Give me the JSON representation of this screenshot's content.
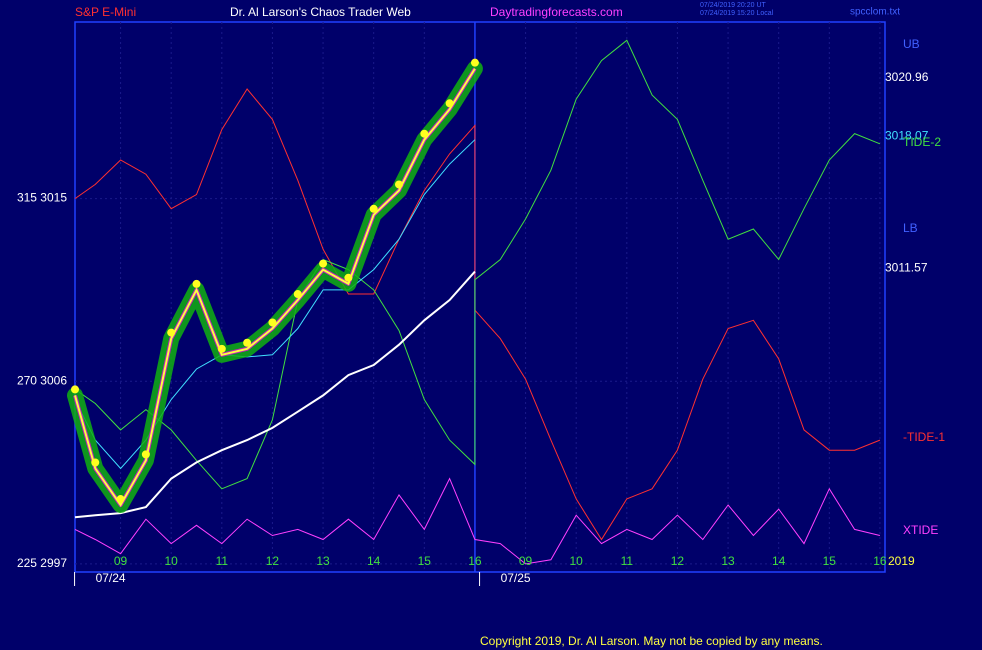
{
  "chart_data": {
    "type": "line",
    "header": {
      "instrument": "S&P E-Mini",
      "site": "Dr. Al Larson's Chaos Trader Web",
      "url": "Daytradingforecasts.com",
      "time_ut": "07/24/2019 20:20 UT",
      "time_local": "07/24/2019 15:20 Local",
      "file": "spcclom.txt"
    },
    "footer": "Copyright 2019, Dr. Al Larson. May not be copied by any means.",
    "annotations": [
      {
        "text": "UB",
        "color": "#4060ff"
      },
      {
        "text": "TIDE-2",
        "color": "#40e040"
      },
      {
        "text": "LB",
        "color": "#4060ff"
      },
      {
        "text": "-TIDE-1",
        "color": "#ff3030"
      },
      {
        "text": "XTIDE",
        "color": "#ff40ff"
      },
      {
        "text": "2019",
        "color": "#ffff40"
      }
    ],
    "price_labels": [
      3020.96,
      3018.07,
      3011.57
    ],
    "price_label_colors": [
      "#ffffff",
      "#40e0ff",
      "#ffffff"
    ],
    "xlim": [
      8.1,
      24.1
    ],
    "xticks": [
      {
        "value": 9,
        "label": "09"
      },
      10,
      11,
      12,
      13,
      14,
      15,
      16,
      {
        "value": 17,
        "label": "09"
      },
      {
        "value": 18,
        "label": "10"
      },
      {
        "value": 19,
        "label": "11"
      },
      {
        "value": 20,
        "label": "12"
      },
      {
        "value": 21,
        "label": "13"
      },
      {
        "value": 22,
        "label": "14"
      },
      {
        "value": 23,
        "label": "15"
      },
      {
        "value": 24,
        "label": "16"
      }
    ],
    "dates": [
      {
        "value": 9,
        "label": "07/24"
      },
      {
        "value": 17,
        "label": "07/25"
      }
    ],
    "ylim": [
      2996.6,
      3023.7
    ],
    "yticks": [
      {
        "value": 2997,
        "label": "225  2997"
      },
      {
        "value": 3006,
        "label": "270  3006"
      },
      {
        "value": 3015,
        "label": "315  3015"
      }
    ],
    "grid": true,
    "series": [
      {
        "name": "XTIDE",
        "color": "#ff40ff",
        "x": [
          8.1,
          8.5,
          9,
          9.5,
          10,
          10.5,
          11,
          11.5,
          12,
          12.5,
          13,
          13.5,
          14,
          14.5,
          15,
          15.5,
          16,
          16.5,
          17,
          17.5,
          18,
          18.5,
          19,
          19.5,
          20,
          20.5,
          21,
          21.5,
          22,
          22.5,
          23,
          23.5,
          24
        ],
        "values": [
          2998.7,
          2998.2,
          2997.5,
          2999.2,
          2998.0,
          2998.9,
          2998.0,
          2999.2,
          2998.4,
          2998.7,
          2998.2,
          2999.2,
          2998.2,
          3000.4,
          2998.7,
          3001.2,
          2998.2,
          2998.0,
          2997.0,
          2997.2,
          2999.4,
          2998.0,
          2998.7,
          2998.2,
          2999.4,
          2998.2,
          2999.9,
          2998.4,
          2999.7,
          2998.0,
          3000.7,
          2998.7,
          2998.4
        ]
      },
      {
        "name": "-TIDE-1",
        "color": "#ff3030",
        "x": [
          8.1,
          8.5,
          9,
          9.5,
          10,
          10.5,
          11,
          11.5,
          12,
          12.5,
          13,
          13.5,
          14,
          14.5,
          15,
          15.5,
          16,
          16,
          16.5,
          17,
          17.5,
          18,
          18.5,
          19,
          19.5,
          20,
          20.5,
          21,
          21.5,
          22,
          22.5,
          23,
          23.5,
          24
        ],
        "values": [
          3015.0,
          3015.7,
          3016.9,
          3016.2,
          3014.5,
          3015.2,
          3018.4,
          3020.4,
          3018.9,
          3015.9,
          3012.5,
          3010.3,
          3010.3,
          3013.0,
          3015.4,
          3017.2,
          3018.6,
          3009.5,
          3008.1,
          3006.1,
          3003.1,
          3000.2,
          2998.2,
          3000.2,
          3000.7,
          3002.6,
          3006.1,
          3008.6,
          3009.0,
          3007.1,
          3003.6,
          3002.6,
          3002.6,
          3003.1
        ]
      },
      {
        "name": "TIDE-2",
        "color": "#40e040",
        "x": [
          8.1,
          8.5,
          9,
          9.5,
          10,
          10.5,
          11,
          11.5,
          12,
          12.5,
          13,
          13.5,
          14,
          14.5,
          15,
          15.5,
          16,
          16,
          16.5,
          17,
          17.5,
          18,
          18.5,
          19,
          19.5,
          20,
          20.5,
          21,
          21.5,
          22,
          22.5,
          23,
          23.5,
          24
        ],
        "values": [
          3005.6,
          3004.9,
          3003.6,
          3004.6,
          3003.6,
          3002.1,
          3000.7,
          3001.2,
          3004.1,
          3010.0,
          3012.0,
          3011.5,
          3010.5,
          3008.5,
          3005.1,
          3003.1,
          3001.9,
          3011.0,
          3012.0,
          3014.0,
          3016.4,
          3019.9,
          3021.8,
          3022.8,
          3020.1,
          3018.9,
          3015.9,
          3013.0,
          3013.5,
          3012.0,
          3014.5,
          3016.9,
          3018.2,
          3017.7
        ]
      },
      {
        "name": "3011.57",
        "color": "#ffffff",
        "x": [
          8.1,
          8.5,
          9,
          9.5,
          10,
          10.5,
          11,
          11.5,
          12,
          12.5,
          13,
          13.5,
          14,
          14.5,
          15,
          15.5,
          16
        ],
        "values": [
          2999.3,
          2999.4,
          2999.5,
          2999.8,
          3001.2,
          3002.0,
          3002.6,
          3003.1,
          3003.7,
          3004.5,
          3005.3,
          3006.3,
          3006.8,
          3007.8,
          3009.0,
          3010.0,
          3011.4
        ]
      },
      {
        "name": "3018.07",
        "color": "#40e0ff",
        "x": [
          8.1,
          8.5,
          9,
          9.5,
          10,
          10.5,
          11,
          11.5,
          12,
          12.5,
          13,
          13.5,
          14,
          14.5,
          15,
          15.5,
          16
        ],
        "values": [
          3005.1,
          3003.1,
          3001.7,
          3003.1,
          3005.1,
          3006.6,
          3007.3,
          3007.2,
          3007.3,
          3008.6,
          3010.5,
          3010.5,
          3011.5,
          3013.0,
          3015.2,
          3016.7,
          3017.9
        ]
      },
      {
        "name": "S&P E-Mini",
        "color": "#ffff40",
        "x": [
          8.1,
          8.5,
          9,
          9.5,
          10,
          10.5,
          11,
          11.5,
          12,
          12.5,
          13,
          13.5,
          14,
          14.5,
          15,
          15.5,
          16
        ],
        "values": [
          3005.3,
          3001.7,
          2999.9,
          3002.1,
          3008.1,
          3010.5,
          3007.3,
          3007.6,
          3008.6,
          3010.0,
          3011.5,
          3010.8,
          3014.2,
          3015.4,
          3017.9,
          3019.4,
          3021.4
        ]
      }
    ]
  }
}
